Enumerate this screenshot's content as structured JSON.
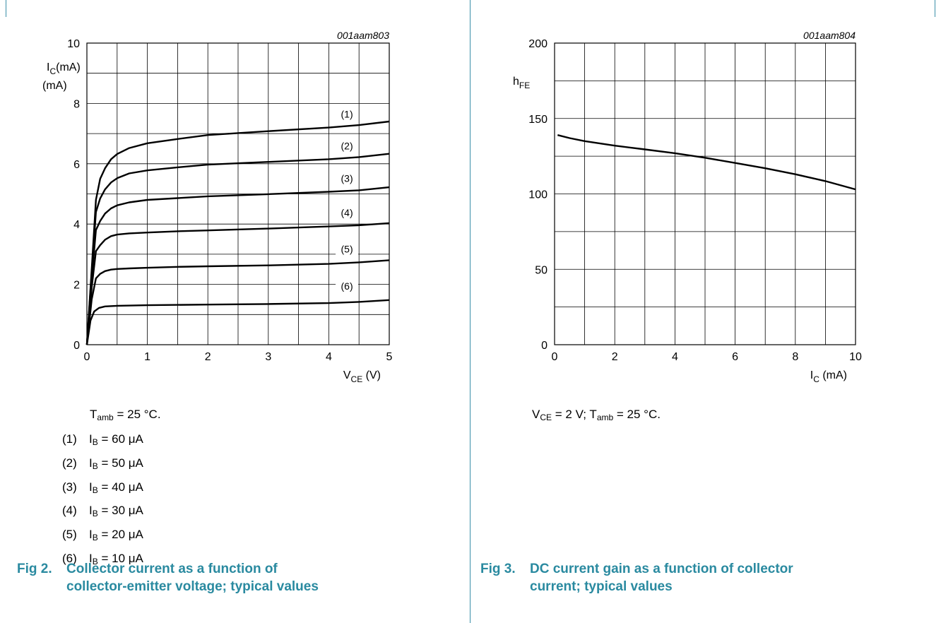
{
  "chart_data": [
    {
      "type": "line",
      "id_text": "001aam803",
      "ylabel": {
        "main": "I",
        "sub": "C",
        "unit": "(mA)"
      },
      "xlabel": {
        "main": "V",
        "sub": "CE",
        "unit": " (V)"
      },
      "xlim": [
        0,
        5
      ],
      "ylim": [
        0,
        10
      ],
      "x_ticks": [
        0,
        1,
        2,
        3,
        4,
        5
      ],
      "y_ticks": [
        0,
        2,
        4,
        6,
        8,
        10
      ],
      "x_minor": 0.5,
      "y_minor": 1,
      "grid": true,
      "series": [
        {
          "name": "(1)",
          "label_at": [
            4.3,
            7.55
          ],
          "points": [
            [
              0,
              0
            ],
            [
              0.08,
              2.5
            ],
            [
              0.15,
              4.8
            ],
            [
              0.22,
              5.5
            ],
            [
              0.3,
              5.85
            ],
            [
              0.4,
              6.15
            ],
            [
              0.5,
              6.32
            ],
            [
              0.7,
              6.52
            ],
            [
              1.0,
              6.68
            ],
            [
              1.5,
              6.82
            ],
            [
              2.0,
              6.95
            ],
            [
              3.0,
              7.08
            ],
            [
              4.0,
              7.2
            ],
            [
              4.5,
              7.28
            ],
            [
              5.0,
              7.4
            ]
          ]
        },
        {
          "name": "(2)",
          "label_at": [
            4.3,
            6.5
          ],
          "points": [
            [
              0,
              0
            ],
            [
              0.08,
              2.4
            ],
            [
              0.15,
              4.4
            ],
            [
              0.22,
              4.85
            ],
            [
              0.3,
              5.15
            ],
            [
              0.4,
              5.38
            ],
            [
              0.5,
              5.52
            ],
            [
              0.7,
              5.68
            ],
            [
              1.0,
              5.78
            ],
            [
              1.5,
              5.88
            ],
            [
              2.0,
              5.97
            ],
            [
              3.0,
              6.06
            ],
            [
              4.0,
              6.15
            ],
            [
              4.5,
              6.22
            ],
            [
              5.0,
              6.33
            ]
          ]
        },
        {
          "name": "(3)",
          "label_at": [
            4.3,
            5.42
          ],
          "points": [
            [
              0,
              0
            ],
            [
              0.08,
              2.2
            ],
            [
              0.15,
              3.8
            ],
            [
              0.22,
              4.1
            ],
            [
              0.3,
              4.35
            ],
            [
              0.4,
              4.52
            ],
            [
              0.5,
              4.62
            ],
            [
              0.7,
              4.72
            ],
            [
              1.0,
              4.8
            ],
            [
              1.5,
              4.86
            ],
            [
              2.0,
              4.92
            ],
            [
              3.0,
              4.99
            ],
            [
              4.0,
              5.07
            ],
            [
              4.5,
              5.12
            ],
            [
              5.0,
              5.22
            ]
          ]
        },
        {
          "name": "(4)",
          "label_at": [
            4.3,
            4.28
          ],
          "points": [
            [
              0,
              0
            ],
            [
              0.08,
              1.9
            ],
            [
              0.15,
              3.1
            ],
            [
              0.22,
              3.3
            ],
            [
              0.3,
              3.48
            ],
            [
              0.4,
              3.6
            ],
            [
              0.5,
              3.65
            ],
            [
              0.7,
              3.69
            ],
            [
              1.0,
              3.72
            ],
            [
              1.5,
              3.76
            ],
            [
              2.0,
              3.79
            ],
            [
              3.0,
              3.85
            ],
            [
              4.0,
              3.92
            ],
            [
              4.5,
              3.96
            ],
            [
              5.0,
              4.03
            ]
          ]
        },
        {
          "name": "(5)",
          "label_at": [
            4.3,
            3.08
          ],
          "points": [
            [
              0,
              0
            ],
            [
              0.08,
              1.5
            ],
            [
              0.15,
              2.2
            ],
            [
              0.22,
              2.35
            ],
            [
              0.3,
              2.44
            ],
            [
              0.4,
              2.49
            ],
            [
              0.5,
              2.51
            ],
            [
              0.7,
              2.53
            ],
            [
              1.0,
              2.55
            ],
            [
              1.5,
              2.58
            ],
            [
              2.0,
              2.6
            ],
            [
              3.0,
              2.63
            ],
            [
              4.0,
              2.68
            ],
            [
              4.5,
              2.73
            ],
            [
              5.0,
              2.8
            ]
          ]
        },
        {
          "name": "(6)",
          "label_at": [
            4.3,
            1.85
          ],
          "points": [
            [
              0,
              0
            ],
            [
              0.06,
              0.8
            ],
            [
              0.12,
              1.1
            ],
            [
              0.2,
              1.22
            ],
            [
              0.3,
              1.27
            ],
            [
              0.5,
              1.29
            ],
            [
              1.0,
              1.31
            ],
            [
              2.0,
              1.33
            ],
            [
              3.0,
              1.35
            ],
            [
              4.0,
              1.38
            ],
            [
              4.5,
              1.42
            ],
            [
              5.0,
              1.48
            ]
          ]
        }
      ]
    },
    {
      "type": "line",
      "id_text": "001aam804",
      "ylabel": {
        "main": "h",
        "sub": "FE",
        "unit": ""
      },
      "xlabel": {
        "main": "I",
        "sub": "C",
        "unit": " (mA)"
      },
      "xlim": [
        0,
        10
      ],
      "ylim": [
        0,
        200
      ],
      "x_ticks": [
        0,
        2,
        4,
        6,
        8,
        10
      ],
      "y_ticks": [
        0,
        50,
        100,
        150,
        200
      ],
      "x_minor": 1,
      "y_minor": 25,
      "grid": true,
      "series": [
        {
          "points": [
            [
              0.1,
              139
            ],
            [
              0.5,
              137
            ],
            [
              1.0,
              135
            ],
            [
              2.0,
              132
            ],
            [
              3.0,
              129.5
            ],
            [
              4.0,
              127
            ],
            [
              5.0,
              124
            ],
            [
              6.0,
              120.5
            ],
            [
              7.0,
              117
            ],
            [
              8.0,
              113
            ],
            [
              9.0,
              108.5
            ],
            [
              10.0,
              103
            ]
          ]
        }
      ]
    }
  ],
  "left_panel": {
    "conditions": {
      "t": "T",
      "t_sub": "amb",
      "value": " = 25 °C."
    },
    "legend": [
      {
        "num": "(1)",
        "i": "I",
        "i_sub": "B",
        "value": " = 60 μA"
      },
      {
        "num": "(2)",
        "i": "I",
        "i_sub": "B",
        "value": " = 50 μA"
      },
      {
        "num": "(3)",
        "i": "I",
        "i_sub": "B",
        "value": " = 40 μA"
      },
      {
        "num": "(4)",
        "i": "I",
        "i_sub": "B",
        "value": " = 30 μA"
      },
      {
        "num": "(5)",
        "i": "I",
        "i_sub": "B",
        "value": " = 20 μA"
      },
      {
        "num": "(6)",
        "i": "I",
        "i_sub": "B",
        "value": " = 10 μA"
      }
    ],
    "caption": {
      "fig": "Fig 2.",
      "line1": "Collector current as a function of",
      "line2": "collector-emitter voltage; typical values"
    }
  },
  "right_panel": {
    "conditions": {
      "v": "V",
      "v_sub": "CE",
      "v_value": " = 2 V; ",
      "t": "T",
      "t_sub": "amb",
      "t_value": " = 25 °C."
    },
    "caption": {
      "fig": "Fig 3.",
      "line1": "DC current gain as a function of collector",
      "line2": "current; typical values"
    }
  },
  "colors": {
    "frame": "#3a8fa8",
    "caption": "#2a8aa0",
    "ink": "#000000"
  }
}
